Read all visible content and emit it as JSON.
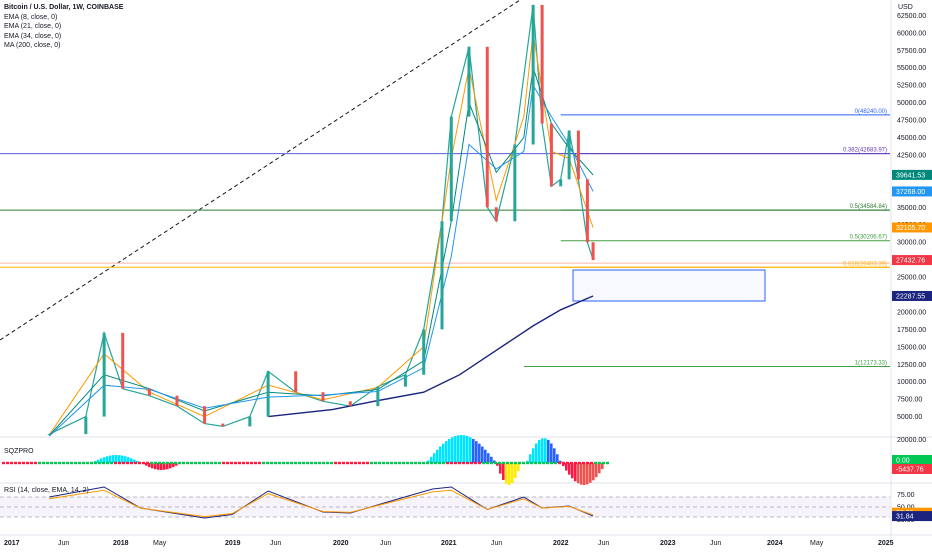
{
  "header": {
    "symbol_title": "Bitcoin / U.S. Dollar, 1W, COINBASE",
    "indicators": [
      "EMA (8, close, 0)",
      "EMA (21, close, 0)",
      "EMA (34, close, 0)",
      "MA (200, close, 0)"
    ],
    "currency": "USD"
  },
  "price_axis": {
    "ticks": [
      5000,
      7500,
      10000,
      12500,
      15000,
      17500,
      20000,
      22500,
      25000,
      27500,
      30000,
      32500,
      35000,
      37500,
      40000,
      42500,
      45000,
      47500,
      50000,
      52500,
      55000,
      57500,
      60000,
      62500
    ],
    "tick_labels": [
      "5000.00",
      "7500.00",
      "10000.00",
      "12500.00",
      "15000.00",
      "17500.00",
      "20000.00",
      "22500.00",
      "25000.00",
      "27500.00",
      "30000.00",
      "32500.00",
      "35000.00",
      "37500.00",
      "40000.00",
      "42500.00",
      "45000.00",
      "47500.00",
      "50000.00",
      "52500.00",
      "55000.00",
      "57500.00",
      "60000.00",
      "62500.00"
    ],
    "last_labels": [
      {
        "text": "39641.53",
        "value": 39641.53,
        "color": "#00897b"
      },
      {
        "text": "37268.00",
        "value": 37268.0,
        "color": "#2196f3"
      },
      {
        "text": "32105.70",
        "value": 32105.7,
        "color": "#ff9800"
      },
      {
        "text": "27432.76",
        "value": 27432.76,
        "color": "#f23645"
      },
      {
        "text": "22287.55",
        "value": 22287.55,
        "color": "#1a237e"
      }
    ]
  },
  "time_axis": {
    "labels": [
      "2017",
      "Jun",
      "2018",
      "May",
      "2019",
      "Jun",
      "2020",
      "Jun",
      "2021",
      "Jun",
      "2022",
      "Jun",
      "2023",
      "Jun",
      "2024",
      "May",
      "2025"
    ]
  },
  "fib_levels": [
    {
      "label": "0(48240.00)",
      "value": 48240.0,
      "color": "#2962ff"
    },
    {
      "label": "0.382(42683.97)",
      "value": 42683.97,
      "color": "#673ab7"
    },
    {
      "label": "0.5(34584.84)",
      "value": 34584.84,
      "color": "#2e7d32"
    },
    {
      "label": "0.5(30206.67)",
      "value": 30206.67,
      "color": "#43a047"
    },
    {
      "label": "0.618(26403.39)",
      "value": 26403.39,
      "color": "#ffb300"
    },
    {
      "label": "1(12173.33)",
      "value": 12173.33,
      "color": "#43a047"
    }
  ],
  "long_lines": [
    {
      "value": 42683.97,
      "color": "#5b5ee0"
    },
    {
      "value": 34584.84,
      "color": "#2e7d32"
    },
    {
      "value": 27000,
      "color": "#f5b7a8"
    },
    {
      "value": 26403.39,
      "color": "#ffb300"
    }
  ],
  "box_label": "",
  "squeeze": {
    "label": "SQZPRO",
    "ticks": [
      "20000.00"
    ],
    "labels": [
      {
        "text": "0.00",
        "color": "#00c853"
      },
      {
        "text": "-5437.76",
        "color": "#f23645"
      }
    ]
  },
  "rsi": {
    "label": "RSI (14, close, EMA, 14, 2)",
    "ticks": [
      "75.00",
      "50.00",
      "25.00"
    ],
    "labels": [
      {
        "text": "38.66",
        "color": "#ff9800"
      },
      {
        "text": "31.84",
        "color": "#1a237e"
      }
    ]
  },
  "chart_data": {
    "type": "line",
    "title": "Bitcoin / U.S. Dollar, 1W, COINBASE",
    "xlabel": "",
    "ylabel": "USD",
    "y_ticks": [
      5000,
      7500,
      10000,
      12500,
      15000,
      17500,
      20000,
      22500,
      25000,
      27500,
      30000,
      32500,
      35000,
      37500,
      40000,
      42500,
      45000,
      47500,
      50000,
      52500,
      55000,
      57500,
      60000,
      62500
    ],
    "x_range": [
      "2017-01",
      "2025-01"
    ],
    "grid": false,
    "series": [
      {
        "name": "Bitcoin / U.S. Dollar",
        "color": "#26a69a",
        "x": [
          "2017-06",
          "2017-10",
          "2017-12",
          "2018-02",
          "2018-05",
          "2018-08",
          "2018-11",
          "2019-01",
          "2019-04",
          "2019-06",
          "2019-09",
          "2019-12",
          "2020-03",
          "2020-06",
          "2020-09",
          "2020-11",
          "2021-01",
          "2021-02",
          "2021-04",
          "2021-06",
          "2021-07",
          "2021-09",
          "2021-11",
          "2021-12",
          "2022-01",
          "2022-02",
          "2022-03",
          "2022-04",
          "2022-05",
          "2022-05-20"
        ],
        "values": [
          2500,
          5000,
          17000,
          9000,
          8000,
          6500,
          4000,
          3600,
          5000,
          11500,
          8500,
          7200,
          6500,
          9300,
          11000,
          17500,
          33000,
          48000,
          58000,
          35000,
          33000,
          44000,
          64000,
          47000,
          38000,
          39000,
          46000,
          39000,
          30000,
          27432.76
        ]
      },
      {
        "name": "EMA (8, close, 0)",
        "color": "#ff9800",
        "x": [
          "2017-06",
          "2017-12",
          "2018-05",
          "2018-11",
          "2019-06",
          "2019-12",
          "2020-06",
          "2020-11",
          "2021-02",
          "2021-04",
          "2021-07",
          "2021-10",
          "2021-11",
          "2022-01",
          "2022-03",
          "2022-05-20"
        ],
        "values": [
          2400,
          14000,
          8500,
          5000,
          9500,
          7400,
          9200,
          15000,
          42000,
          55000,
          36000,
          48000,
          60000,
          43000,
          42000,
          32105.7
        ]
      },
      {
        "name": "EMA (21, close, 0)",
        "color": "#00897b",
        "x": [
          "2017-06",
          "2017-12",
          "2018-05",
          "2018-11",
          "2019-06",
          "2019-12",
          "2020-06",
          "2020-11",
          "2021-02",
          "2021-04",
          "2021-07",
          "2021-10",
          "2021-11",
          "2022-01",
          "2022-03",
          "2022-05-20"
        ],
        "values": [
          2300,
          11000,
          9000,
          5800,
          8500,
          8000,
          8900,
          13000,
          33000,
          50000,
          40000,
          45000,
          55000,
          47000,
          43500,
          39641.53
        ]
      },
      {
        "name": "EMA (34, close, 0)",
        "color": "#2196f3",
        "x": [
          "2017-06",
          "2017-12",
          "2018-05",
          "2018-11",
          "2019-06",
          "2019-12",
          "2020-06",
          "2020-11",
          "2021-02",
          "2021-04",
          "2021-07",
          "2021-10",
          "2021-11",
          "2022-01",
          "2022-03",
          "2022-05-20"
        ],
        "values": [
          2200,
          9500,
          8900,
          6200,
          7800,
          8100,
          8600,
          12000,
          28000,
          44000,
          40500,
          43000,
          52500,
          48000,
          44000,
          37268.0
        ]
      },
      {
        "name": "MA (200, close, 0)",
        "color": "#1a237e",
        "x": [
          "2019-06",
          "2020-01",
          "2020-06",
          "2020-11",
          "2021-03",
          "2021-07",
          "2021-11",
          "2022-02",
          "2022-05-20"
        ],
        "values": [
          5000,
          6000,
          7300,
          8500,
          11000,
          14500,
          18000,
          20300,
          22287.55
        ]
      }
    ],
    "rsi_series": {
      "x": [
        "2017-06",
        "2017-12",
        "2018-04",
        "2018-11",
        "2019-02",
        "2019-06",
        "2019-12",
        "2020-03",
        "2020-08",
        "2020-12",
        "2021-02",
        "2021-06",
        "2021-10",
        "2021-12",
        "2022-03",
        "2022-05-20"
      ],
      "values": [
        70,
        90,
        48,
        28,
        35,
        82,
        40,
        38,
        65,
        86,
        90,
        45,
        70,
        48,
        52,
        31.84
      ]
    }
  }
}
